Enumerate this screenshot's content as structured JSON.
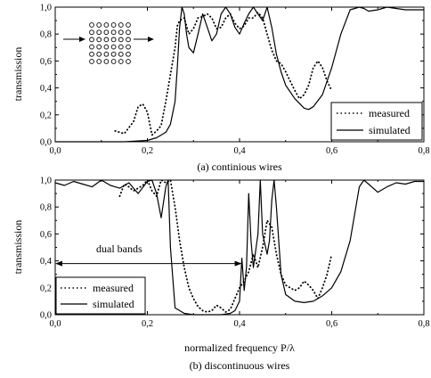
{
  "chart_data": [
    {
      "type": "line",
      "panel": "a",
      "caption": "(a) continious wires",
      "xlabel": "",
      "ylabel": "transmission",
      "xlim": [
        0,
        0.8
      ],
      "ylim": [
        0,
        1
      ],
      "x_ticks": [
        "0,0",
        "0,2",
        "0,4",
        "0,6",
        "0,8"
      ],
      "y_ticks": [
        "0,0",
        "0,2",
        "0,4",
        "0,6",
        "0,8",
        "1,0"
      ],
      "legend_position": "bottom-right",
      "inset": "square array of wires with incident and transmitted arrows",
      "series": [
        {
          "name": "measured",
          "style": "dotted",
          "x": [
            0.13,
            0.15,
            0.17,
            0.18,
            0.19,
            0.2,
            0.21,
            0.22,
            0.23,
            0.24,
            0.25,
            0.26,
            0.265,
            0.27,
            0.28,
            0.29,
            0.3,
            0.31,
            0.32,
            0.33,
            0.34,
            0.35,
            0.36,
            0.37,
            0.38,
            0.39,
            0.4,
            0.41,
            0.42,
            0.43,
            0.44,
            0.45,
            0.46,
            0.47,
            0.48,
            0.49,
            0.5,
            0.51,
            0.52,
            0.53,
            0.54,
            0.55,
            0.56,
            0.57,
            0.58,
            0.59,
            0.6
          ],
          "y": [
            0.08,
            0.06,
            0.15,
            0.26,
            0.28,
            0.22,
            0.05,
            0.08,
            0.12,
            0.3,
            0.5,
            0.7,
            0.86,
            0.9,
            0.92,
            0.8,
            0.84,
            0.92,
            0.93,
            0.95,
            0.92,
            0.84,
            0.85,
            0.92,
            0.95,
            0.88,
            0.84,
            0.86,
            0.92,
            0.92,
            0.96,
            0.92,
            0.8,
            0.68,
            0.6,
            0.58,
            0.52,
            0.45,
            0.38,
            0.32,
            0.35,
            0.42,
            0.55,
            0.6,
            0.55,
            0.45,
            0.38
          ]
        },
        {
          "name": "simulated",
          "style": "solid",
          "x": [
            0,
            0.1,
            0.15,
            0.2,
            0.22,
            0.24,
            0.25,
            0.26,
            0.265,
            0.27,
            0.275,
            0.28,
            0.285,
            0.29,
            0.3,
            0.31,
            0.32,
            0.33,
            0.34,
            0.35,
            0.36,
            0.37,
            0.38,
            0.39,
            0.4,
            0.41,
            0.42,
            0.43,
            0.44,
            0.45,
            0.46,
            0.47,
            0.48,
            0.49,
            0.5,
            0.52,
            0.54,
            0.55,
            0.56,
            0.58,
            0.6,
            0.62,
            0.64,
            0.66,
            0.67,
            0.68,
            0.7,
            0.72,
            0.74,
            0.76,
            0.78,
            0.8
          ],
          "y": [
            0,
            0,
            0,
            0.01,
            0.03,
            0.07,
            0.13,
            0.3,
            0.55,
            0.85,
            1.0,
            0.95,
            0.8,
            0.7,
            0.66,
            0.8,
            0.95,
            0.85,
            0.75,
            0.8,
            0.95,
            1.0,
            0.95,
            0.85,
            0.8,
            0.88,
            0.95,
            1.0,
            0.95,
            0.9,
            1.0,
            0.85,
            0.65,
            0.52,
            0.42,
            0.32,
            0.25,
            0.24,
            0.26,
            0.35,
            0.55,
            0.8,
            0.98,
            1.0,
            0.99,
            0.97,
            0.98,
            1.0,
            0.99,
            0.98,
            0.98,
            0.98
          ]
        }
      ]
    },
    {
      "type": "line",
      "panel": "b",
      "caption": "(b) discontinuous wires",
      "xlabel": "normalized frequency P/λ",
      "ylabel": "transmission",
      "xlim": [
        0,
        0.8
      ],
      "ylim": [
        0,
        1
      ],
      "x_ticks": [
        "0,0",
        "0,2",
        "0,4",
        "0,6",
        "0,8"
      ],
      "y_ticks": [
        "0,0",
        "0,2",
        "0,4",
        "0,6",
        "0,8",
        "1,0"
      ],
      "legend_position": "bottom-left",
      "annotation": {
        "text": "dual bands",
        "from_x": 0.0,
        "to_x": 0.405,
        "y": 0.38
      },
      "series": [
        {
          "name": "measured",
          "style": "dotted",
          "x": [
            0.14,
            0.15,
            0.16,
            0.17,
            0.18,
            0.19,
            0.2,
            0.21,
            0.22,
            0.23,
            0.24,
            0.25,
            0.26,
            0.27,
            0.28,
            0.29,
            0.3,
            0.31,
            0.32,
            0.33,
            0.34,
            0.35,
            0.36,
            0.37,
            0.38,
            0.39,
            0.4,
            0.41,
            0.42,
            0.43,
            0.44,
            0.45,
            0.46,
            0.47,
            0.48,
            0.49,
            0.5,
            0.51,
            0.52,
            0.53,
            0.54,
            0.55,
            0.56,
            0.57,
            0.58,
            0.59,
            0.6
          ],
          "y": [
            0.88,
            0.97,
            0.95,
            0.92,
            0.94,
            0.96,
            1.0,
            0.92,
            0.88,
            1.0,
            0.98,
            1.0,
            0.8,
            0.55,
            0.35,
            0.2,
            0.12,
            0.06,
            0.03,
            0.02,
            0.03,
            0.07,
            0.05,
            0.02,
            0.04,
            0.12,
            0.2,
            0.25,
            0.32,
            0.45,
            0.35,
            0.5,
            0.7,
            0.65,
            0.45,
            0.3,
            0.22,
            0.2,
            0.18,
            0.2,
            0.25,
            0.22,
            0.18,
            0.12,
            0.2,
            0.3,
            0.45
          ]
        },
        {
          "name": "simulated",
          "style": "solid",
          "x": [
            0,
            0.02,
            0.04,
            0.06,
            0.08,
            0.1,
            0.12,
            0.14,
            0.16,
            0.18,
            0.2,
            0.21,
            0.22,
            0.23,
            0.24,
            0.245,
            0.25,
            0.26,
            0.28,
            0.3,
            0.32,
            0.34,
            0.36,
            0.38,
            0.39,
            0.4,
            0.405,
            0.41,
            0.415,
            0.42,
            0.425,
            0.43,
            0.44,
            0.445,
            0.45,
            0.46,
            0.465,
            0.47,
            0.475,
            0.48,
            0.49,
            0.5,
            0.52,
            0.54,
            0.56,
            0.58,
            0.6,
            0.62,
            0.64,
            0.66,
            0.67,
            0.68,
            0.7,
            0.72,
            0.74,
            0.76,
            0.78,
            0.8
          ],
          "y": [
            0.98,
            0.96,
            0.99,
            0.97,
            0.95,
            1.0,
            0.96,
            0.94,
            0.98,
            0.9,
            0.99,
            1.0,
            0.9,
            0.72,
            0.95,
            1.0,
            0.5,
            0.05,
            0.01,
            0.0,
            0.0,
            0.0,
            0.0,
            0.01,
            0.03,
            0.1,
            0.42,
            0.18,
            0.35,
            0.9,
            0.55,
            0.35,
            0.6,
            1.0,
            0.6,
            0.45,
            0.55,
            0.85,
            1.0,
            0.8,
            0.3,
            0.15,
            0.1,
            0.09,
            0.1,
            0.14,
            0.2,
            0.32,
            0.55,
            0.95,
            1.0,
            0.97,
            0.91,
            0.95,
            0.98,
            0.97,
            0.99,
            0.99
          ]
        }
      ]
    }
  ]
}
